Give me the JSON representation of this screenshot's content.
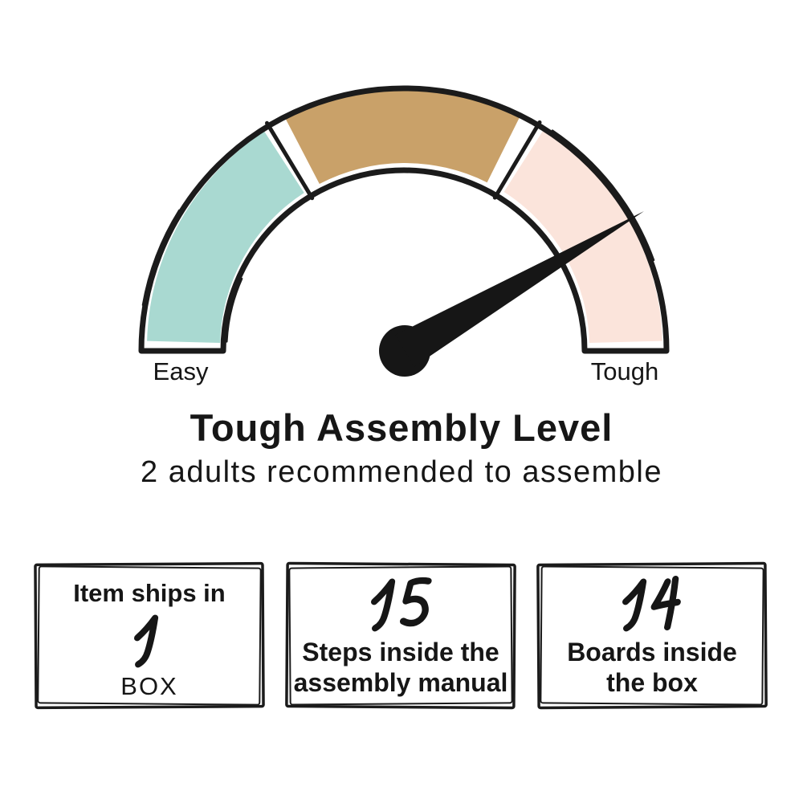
{
  "gauge": {
    "labels": {
      "left": "Easy",
      "right": "Tough"
    },
    "segments": [
      {
        "name": "easy",
        "color": "#a9d9d1"
      },
      {
        "name": "medium",
        "color": "#c9a169"
      },
      {
        "name": "tough",
        "color": "#fbe4db"
      }
    ],
    "needle": {
      "points_to": "tough",
      "color": "#161616"
    },
    "outline_color": "#1b1b1b"
  },
  "heading": {
    "title": "Tough Assembly Level",
    "subtitle": "2 adults recommended to assemble"
  },
  "info_boxes": [
    {
      "top_label": "Item ships in",
      "number": "1",
      "bottom_label": "BOX"
    },
    {
      "number": "15",
      "line1": "Steps inside the",
      "line2": "assembly manual"
    },
    {
      "number": "14",
      "line1": "Boards inside",
      "line2": "the box"
    }
  ]
}
